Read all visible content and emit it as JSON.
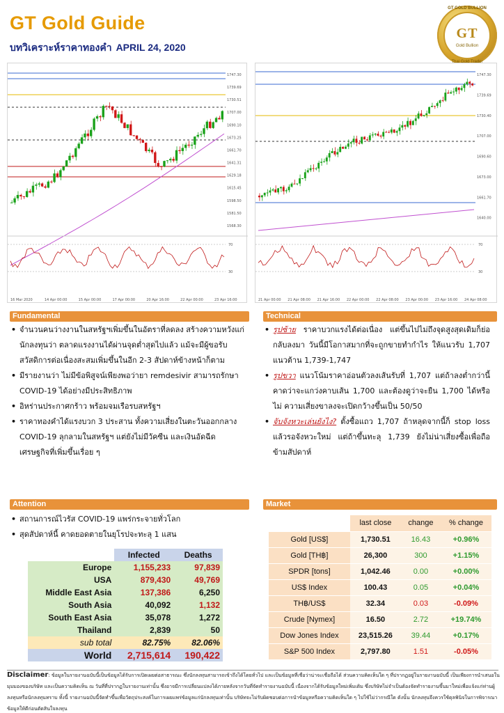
{
  "header": {
    "title": "GT Gold Guide",
    "subtitle_th": "บทวิเคราะห์ราคาทองคำ",
    "date": "April 24, 2020"
  },
  "logo": {
    "mark": "GT",
    "ring": "GT GOLD BULLION",
    "name": "Gold Bullion",
    "bottom": "Thai Gold Trader"
  },
  "chart_left": {
    "price_labels": [
      "1747.30",
      "1739.69",
      "1730.51",
      "1707.00",
      "1690.10",
      "1673.25",
      "1661.70",
      "1641.31",
      "1629.18",
      "1615.45",
      "1598.50",
      "1581.50",
      "1568.30"
    ],
    "time_labels": [
      "16 Mar 2020",
      "14 Apr 00:00",
      "15 Apr 00:00",
      "17 Apr 00:00",
      "20 Apr 16:00",
      "22 Apr 00:00",
      "23 Apr 16:00"
    ],
    "rsi_labels": [
      "70",
      "30"
    ]
  },
  "chart_right": {
    "price_labels": [
      "1747.30",
      "1739.69",
      "1730.40",
      "1707.00",
      "1690.60",
      "1673.00",
      "1661.70",
      "1640.00"
    ],
    "time_labels": [
      "21 Apr 00:00",
      "21 Apr 08:00",
      "21 Apr 16:00",
      "22 Apr 00:00",
      "22 Apr 08:00",
      "23 Apr 00:00",
      "23 Apr 16:00",
      "24 Apr 08:00"
    ],
    "rsi_labels": [
      "70",
      "30"
    ]
  },
  "fundamental": {
    "header": "Fundamental",
    "items": [
      "จำนวนคนว่างงานในสหรัฐฯเพิ่มขึ้นในอัตราที่ลดลง สร้างความหวังแก่นักลงทุนว่า ตลาดแรงงานได้ผ่านจุดต่ำสุดไปแล้ว แม้จะมีผู้ขอรับสวัสดิการต่อเนื่องสะสมเพิ่มขึ้นในอีก 2-3 สัปดาห์ข้างหน้าก็ตาม",
      "มีรายงานว่า ไม่มีข้อพิสูจน์เพียงพอว่ายา remdesivir สามารถรักษา COVID-19 ได้อย่างมีประสิทธิภาพ",
      "อิหร่านประกาศกร้าว พร้อมจมเรือรบสหรัฐฯ",
      "ราคาทองคำได้แรงบวก 3 ประสาน ทั้งความเสี่ยงในตะวันออกกลาง COVID-19 ลุกลามในสหรัฐฯ แต่ยังไม่มีวัคซีน และเงินอัดฉีดเศรษฐกิจที่เพิ่มขึ้นเรื่อย ๆ"
    ]
  },
  "technical": {
    "header": "Technical",
    "items": [
      {
        "label": "รูปซ้าย",
        "text": " ราคาบวกแรงได้ต่อเนื่อง แต่ขึ้นไปไม่ถึงจุดสูงสุดเดิมก็ย่อกลับลงมา วันนี้มีโอกาสมากที่จะถูกขายทำกำไร ให้แนวรับ 1,707 แนวต้าน 1,739-1,747"
      },
      {
        "label": "รูปขวา",
        "text": " แนวโน้มราคาอ่อนตัวลงเส้นรับที่ 1,707 แต่ถ้าลงต่ำกว่านี้ คาดว่าจะแกว่งคาบเส้น 1,700 และต้องดูว่าจะยืน 1,700 ได้หรือไม่ ความเสี่ยงขาลงจะเปิดกว้างขึ้นเป็น 50/50"
      },
      {
        "label": "จับจังหวะเล่นยังไง?",
        "text": " ตั้งซื้อแถว 1,707 ถ้าหลุดจากนี้ก็ stop loss แล้วรอจังหวะใหม่ แต่ถ้าขึ้นทะลุ 1,739 ยังไม่น่าเสี่ยงซื้อเพื่อถือข้ามสัปดาห์"
      }
    ]
  },
  "attention": {
    "header": "Attention",
    "items": [
      "สถานการณ์ไวรัส COVID-19 แพร่กระจายทั่วโลก",
      "สุดสัปดาห์นี้ คาดยอดตายในยุโรปจะทะลุ 1 แสน"
    ],
    "table": {
      "headers": [
        "",
        "Infected",
        "Deaths"
      ],
      "rows": [
        {
          "region": "Europe",
          "infected": "1,155,233",
          "deaths": "97,839",
          "inf_red": true,
          "dea_red": true
        },
        {
          "region": "USA",
          "infected": "879,430",
          "deaths": "49,769",
          "inf_red": true,
          "dea_red": true
        },
        {
          "region": "Middle East Asia",
          "infected": "137,386",
          "deaths": "6,250",
          "inf_red": true,
          "dea_red": false
        },
        {
          "region": "South Asia",
          "infected": "40,092",
          "deaths": "1,132",
          "inf_red": false,
          "dea_red": true
        },
        {
          "region": "South East Asia",
          "infected": "35,078",
          "deaths": "1,272",
          "inf_red": false,
          "dea_red": false
        },
        {
          "region": "Thailand",
          "infected": "2,839",
          "deaths": "50",
          "inf_red": false,
          "dea_red": false
        }
      ],
      "subtotal": {
        "label": "sub total",
        "infected": "82.75%",
        "deaths": "82.06%"
      },
      "world": {
        "label": "World",
        "infected": "2,715,614",
        "deaths": "190,422"
      }
    }
  },
  "market": {
    "header": "Market",
    "headers": [
      "",
      "last close",
      "change",
      "% change"
    ],
    "rows": [
      {
        "name": "Gold [US$]",
        "close": "1,730.51",
        "change": "16.43",
        "pct": "+0.96%",
        "up": true
      },
      {
        "name": "Gold [TH฿]",
        "close": "26,300",
        "change": "300",
        "pct": "+1.15%",
        "up": true
      },
      {
        "name": "SPDR [tons]",
        "close": "1,042.46",
        "change": "0.00",
        "pct": "+0.00%",
        "up": true
      },
      {
        "name": "US$ Index",
        "close": "100.43",
        "change": "0.05",
        "pct": "+0.04%",
        "up": true
      },
      {
        "name": "TH฿/US$",
        "close": "32.34",
        "change": "0.03",
        "pct": "-0.09%",
        "up": false
      },
      {
        "name": "Crude [Nymex]",
        "close": "16.50",
        "change": "2.72",
        "pct": "+19.74%",
        "up": true
      },
      {
        "name": "Dow Jones Index",
        "close": "23,515.26",
        "change": "39.44",
        "pct": "+0.17%",
        "up": true
      },
      {
        "name": "S&P 500 Index",
        "close": "2,797.80",
        "change": "1.51",
        "pct": "-0.05%",
        "up": false
      }
    ]
  },
  "disclaimer": {
    "label": "Disclaimer",
    "text": ": ข้อมูลในรายงานฉบับนี้เป็นข้อมูลได้รับการเปิดเผยต่อสาธารณะ ซึ่งนักลงทุนสามารถเข้าถึงได้โดยทั่วไป และเป็นข้อมูลที่เชื่อว่าน่าจะเชื่อถือได้ ส่วนความคิดเห็นใด ๆ ที่ปรากฏอยู่ในรายงานฉบับนี้ เป็นเพียงการนำเสนอในมุมมองของบริษัท และเป็นความคิดเห็น ณ วันที่ที่ปรากฏในรายงานเท่านั้น ซึ่งอาจมีการเปลี่ยนแปลงได้ภายหลังจากวันที่จัดทำรายงานฉบับนี้ เนื่องจากได้รับข้อมูลใหม่เพิ่มเติม ซึ่งบริษัทไม่จำเป็นต้องจัดทำรายงานขึ้นมาใหม่เพื่อแจ้งแก่ท่านผู้ลงทุนหรือนักลงทุนทราบ ทั้งนี้ รายงานฉบับนี้จัดทำขึ้นเพื่อวัตถุประสงค์ในการเผยแพร่ข้อมูลแก่นักลงทุนเท่านั้น บริษัทจะไม่รับผิดชอบต่อการนำข้อมูลหรือความคิดเห็นใด ๆ ไปใช้ไม่ว่ากรณีใด ดังนั้น นักลงทุนจึงควรใช้ดุลพินิจในการพิจารณาข้อมูลให้ดีก่อนตัดสินใจลงทุน"
  }
}
